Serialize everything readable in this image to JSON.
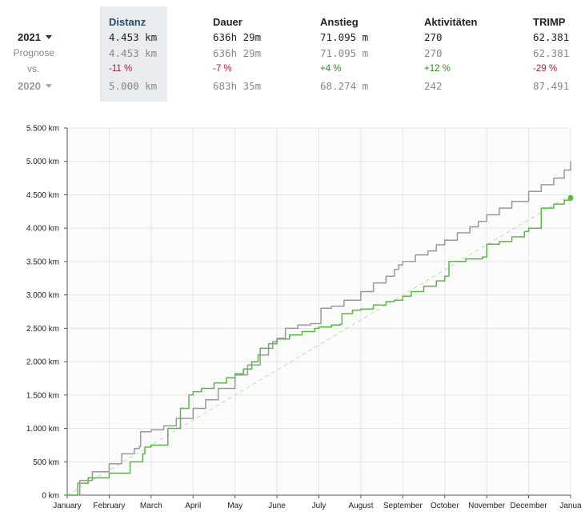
{
  "stats": {
    "headers": [
      "Distanz",
      "Dauer",
      "Anstieg",
      "Aktivitäten",
      "TRIMP"
    ],
    "current": {
      "year": "2021",
      "values": [
        "4.453 km",
        "636h 29m",
        "71.095 m",
        "270",
        "62.381"
      ]
    },
    "forecast": {
      "label": "Prognose",
      "values": [
        "4.453 km",
        "636h 29m",
        "71.095 m",
        "270",
        "62.381"
      ]
    },
    "vs": {
      "label": "vs.",
      "values": [
        "-11 %",
        "-7 %",
        "+4 %",
        "+12 %",
        "-29 %"
      ],
      "signs": [
        "neg",
        "neg",
        "pos",
        "pos",
        "neg"
      ]
    },
    "previous": {
      "year": "2020",
      "values": [
        "5.000 km",
        "683h 35m",
        "68.274 m",
        "242",
        "87.491"
      ]
    }
  },
  "colors": {
    "current_line": "#5cb64a",
    "previous_line": "#999999",
    "projection": "#c8e6c0",
    "grid": "#e6e6e6",
    "highlight": "#e8ecef"
  },
  "chart_data": {
    "type": "line",
    "title": "",
    "xlabel": "",
    "ylabel": "",
    "x_axis": {
      "ticks": [
        "January",
        "February",
        "March",
        "April",
        "May",
        "June",
        "July",
        "August",
        "September",
        "October",
        "November",
        "December",
        "Janua"
      ],
      "range_months": [
        0,
        12
      ]
    },
    "y_axis": {
      "range": [
        0,
        5500
      ],
      "ticks": [
        0,
        500,
        1000,
        1500,
        2000,
        2500,
        3000,
        3500,
        4000,
        4500,
        5000,
        5500
      ],
      "tick_labels": [
        "0 km",
        "500 km",
        "1.000 km",
        "1.500 km",
        "2.000 km",
        "2.500 km",
        "3.000 km",
        "3.500 km",
        "4.000 km",
        "4.500 km",
        "5.000 km",
        "5.500 km"
      ]
    },
    "grid": true,
    "series": [
      {
        "key": "previous",
        "x": [
          0,
          0.3,
          0.6,
          1.0,
          1.3,
          1.6,
          1.72,
          1.75,
          2.0,
          2.3,
          2.6,
          3.0,
          3.3,
          3.6,
          4.0,
          4.3,
          4.6,
          4.8,
          4.9,
          5.0,
          5.2,
          5.5,
          5.8,
          6.0,
          6.05,
          6.3,
          6.6,
          7.0,
          7.3,
          7.6,
          7.8,
          7.9,
          8.0,
          8.3,
          8.6,
          8.8,
          9.0,
          9.3,
          9.6,
          9.8,
          10.0,
          10.3,
          10.6,
          11.0,
          11.3,
          11.6,
          11.85,
          12.0
        ],
        "y": [
          0,
          220,
          350,
          470,
          620,
          700,
          730,
          950,
          980,
          1040,
          1150,
          1300,
          1430,
          1600,
          1800,
          1950,
          2100,
          2200,
          2300,
          2350,
          2500,
          2550,
          2570,
          2570,
          2800,
          2830,
          2920,
          3050,
          3180,
          3280,
          3380,
          3450,
          3500,
          3600,
          3660,
          3750,
          3820,
          3930,
          4020,
          4100,
          4200,
          4300,
          4400,
          4550,
          4650,
          4750,
          4870,
          5000
        ]
      },
      {
        "key": "current",
        "x": [
          0,
          0.25,
          0.5,
          1.0,
          1.5,
          1.8,
          1.85,
          2.0,
          2.4,
          2.7,
          2.9,
          3.0,
          3.2,
          3.5,
          3.8,
          4.0,
          4.2,
          4.4,
          4.55,
          4.6,
          4.8,
          5.0,
          5.3,
          5.6,
          5.9,
          6.0,
          6.3,
          6.5,
          6.55,
          6.8,
          7.0,
          7.3,
          7.6,
          7.8,
          8.0,
          8.2,
          8.5,
          8.8,
          9.0,
          9.1,
          9.5,
          9.9,
          10.0,
          10.3,
          10.6,
          10.9,
          11.0,
          11.3,
          11.6,
          11.85,
          12.0
        ],
        "y": [
          0,
          180,
          260,
          330,
          500,
          620,
          720,
          750,
          1000,
          1300,
          1500,
          1550,
          1600,
          1680,
          1760,
          1820,
          1890,
          2000,
          2100,
          2200,
          2270,
          2340,
          2400,
          2450,
          2500,
          2520,
          2550,
          2560,
          2720,
          2770,
          2790,
          2850,
          2900,
          2920,
          2980,
          3050,
          3130,
          3210,
          3280,
          3500,
          3540,
          3570,
          3760,
          3800,
          3870,
          3950,
          4000,
          4300,
          4360,
          4420,
          4453
        ]
      }
    ],
    "projection": {
      "x": [
        0,
        12
      ],
      "y": [
        0,
        4500
      ]
    },
    "last_point": {
      "x": 12,
      "y": 4453
    }
  }
}
